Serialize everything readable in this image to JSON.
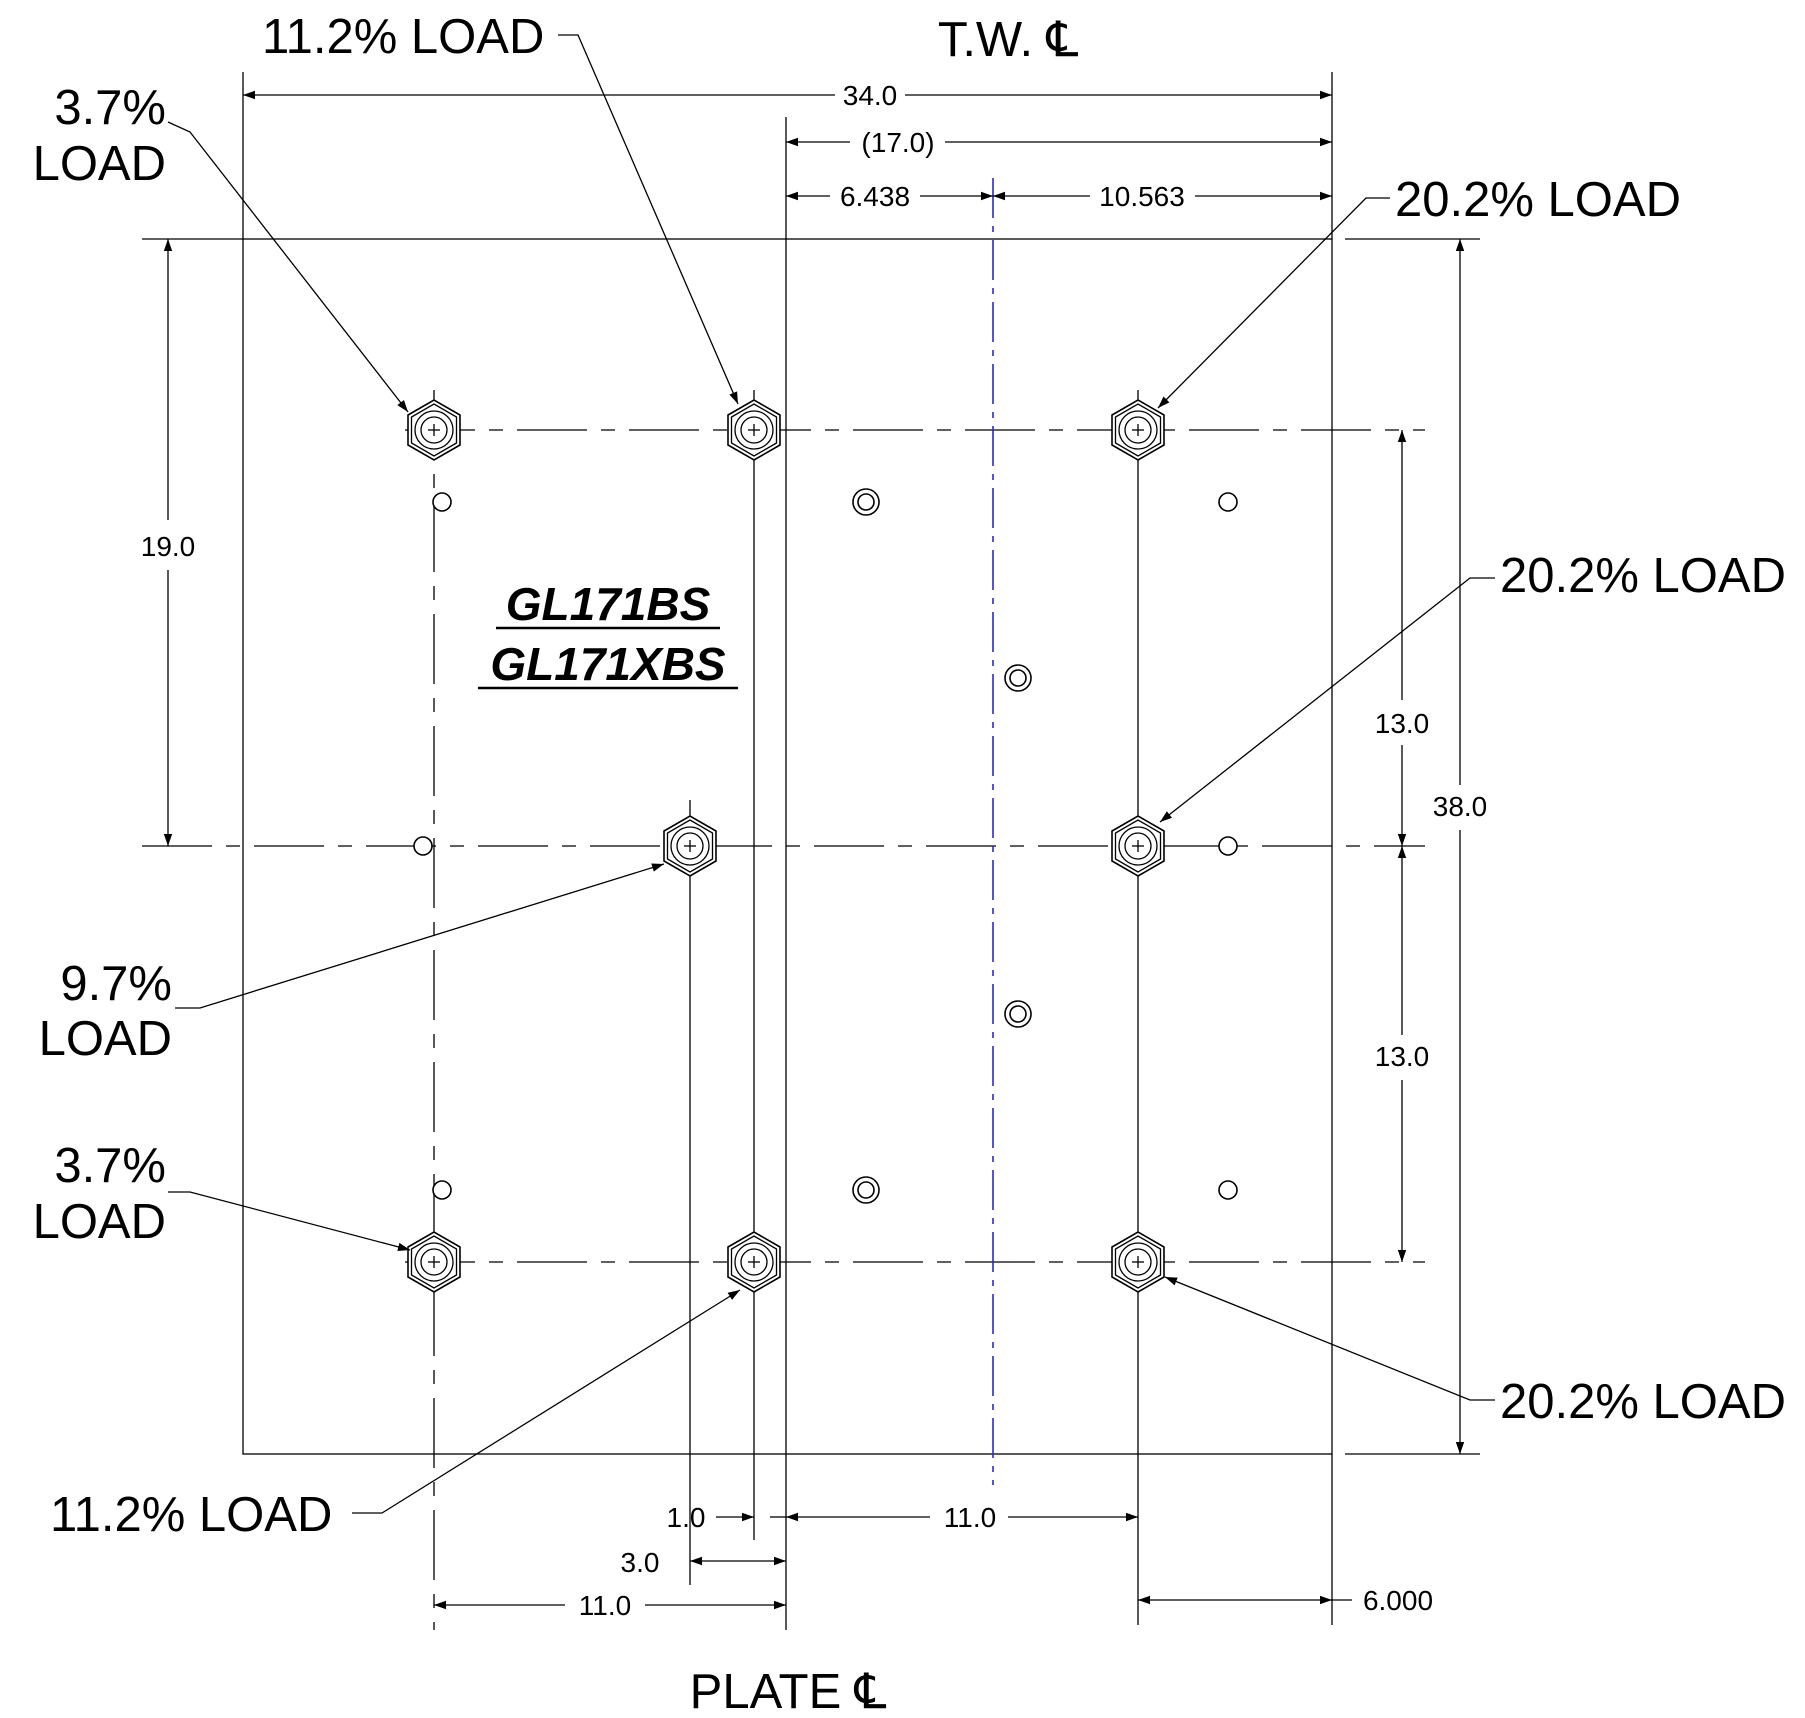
{
  "header": {
    "tw_centerline": "T.W. ℄",
    "plate_centerline": "PLATE ℄"
  },
  "part_numbers": [
    "GL171BS",
    "GL171XBS"
  ],
  "load_callouts": [
    {
      "text": "11.2% LOAD"
    },
    {
      "text": "3.7%\nLOAD"
    },
    {
      "text": "20.2% LOAD"
    },
    {
      "text": "20.2% LOAD"
    },
    {
      "text": "9.7%\nLOAD"
    },
    {
      "text": "3.7%\nLOAD"
    },
    {
      "text": "11.2% LOAD"
    },
    {
      "text": "20.2% LOAD"
    }
  ],
  "dimensions": {
    "overall_width": "34.0",
    "half_width": "(17.0)",
    "left_offset": "6.438",
    "right_offset": "10.563",
    "overall_height": "38.0",
    "upper_height": "19.0",
    "bolt_spacing_upper": "13.0",
    "bolt_spacing_lower": "13.0",
    "small_offset": "1.0",
    "mid_offset": "3.0",
    "left_spacing": "11.0",
    "center_spacing": "11.0",
    "edge_offset": "6.000"
  },
  "colors": {
    "line": "#000000",
    "tw_centerline": "#2a2ad0"
  }
}
